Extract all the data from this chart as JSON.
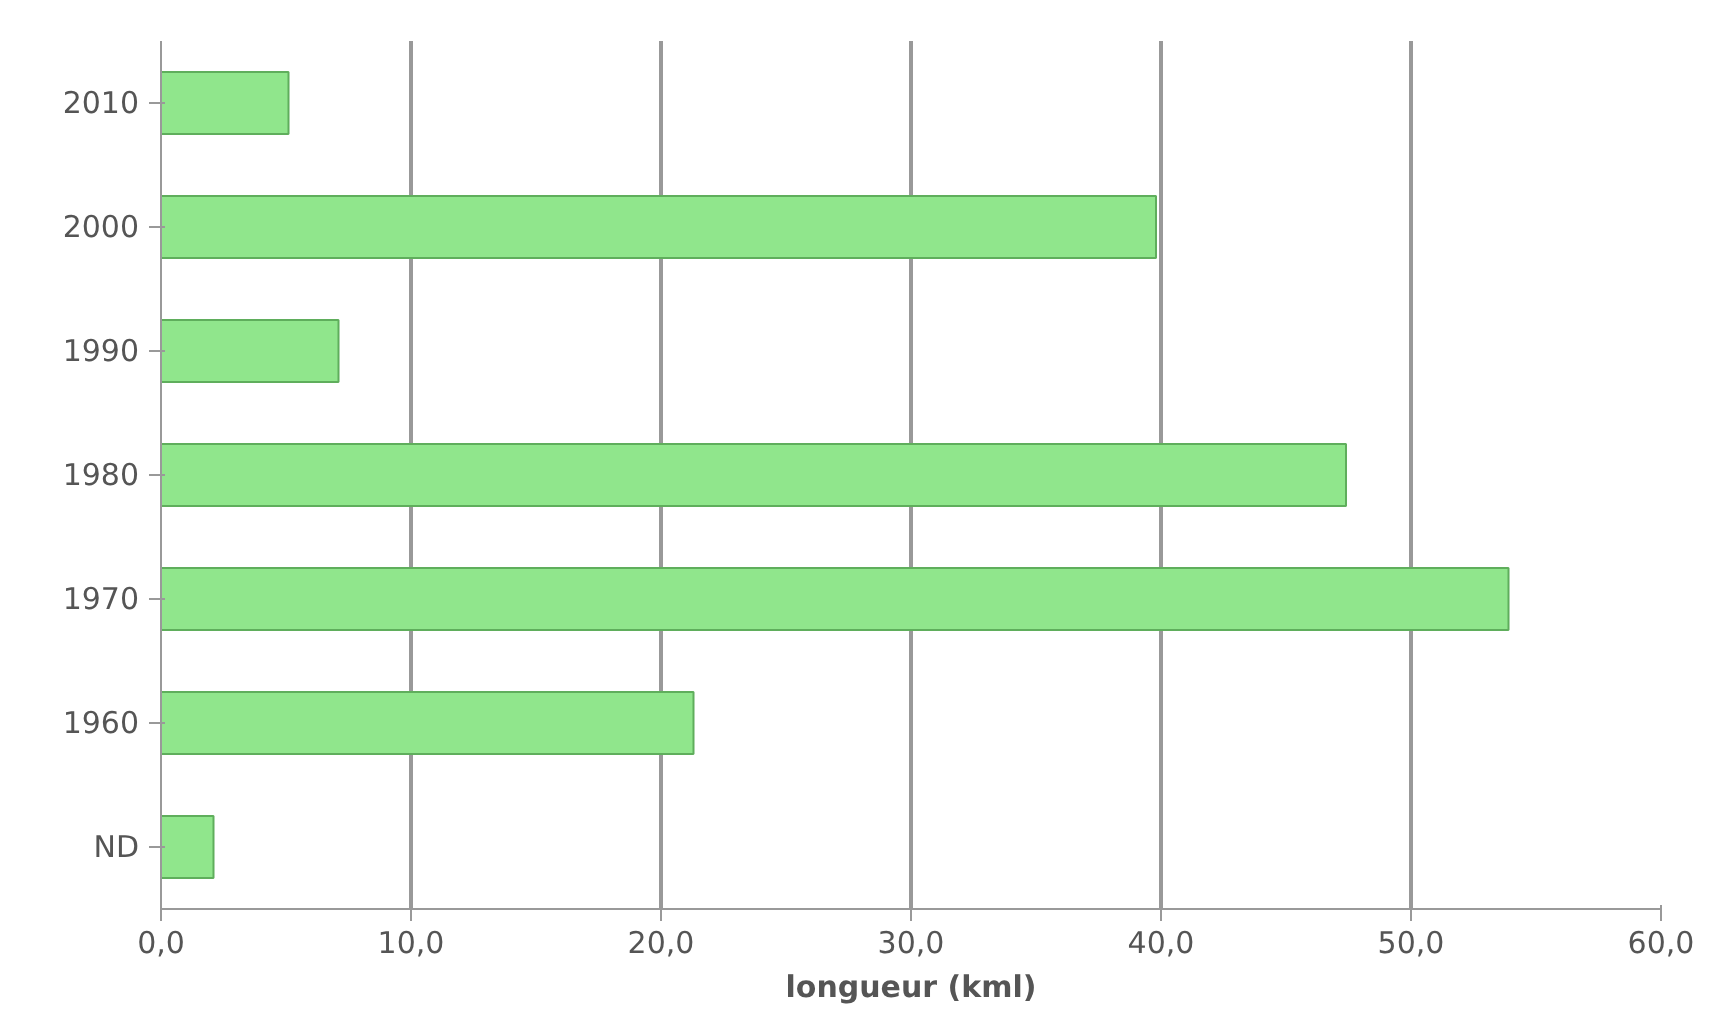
{
  "chart_data": {
    "type": "bar",
    "orientation": "horizontal",
    "xlabel": "longueur (kml)",
    "categories": [
      "2010",
      "2000",
      "1990",
      "1980",
      "1970",
      "1960",
      "ND"
    ],
    "values": [
      5.1,
      39.8,
      7.1,
      47.4,
      53.9,
      21.3,
      2.1
    ],
    "color": "#90e68c",
    "xlim": [
      0,
      60
    ],
    "xticks": [
      {
        "value": 0,
        "label": "0,0"
      },
      {
        "value": 10,
        "label": "10,0"
      },
      {
        "value": 20,
        "label": "20,0"
      },
      {
        "value": 30,
        "label": "30,0"
      },
      {
        "value": 40,
        "label": "40,0"
      },
      {
        "value": 50,
        "label": "50,0"
      },
      {
        "value": 60,
        "label": "60,0"
      }
    ],
    "grid": "x"
  }
}
